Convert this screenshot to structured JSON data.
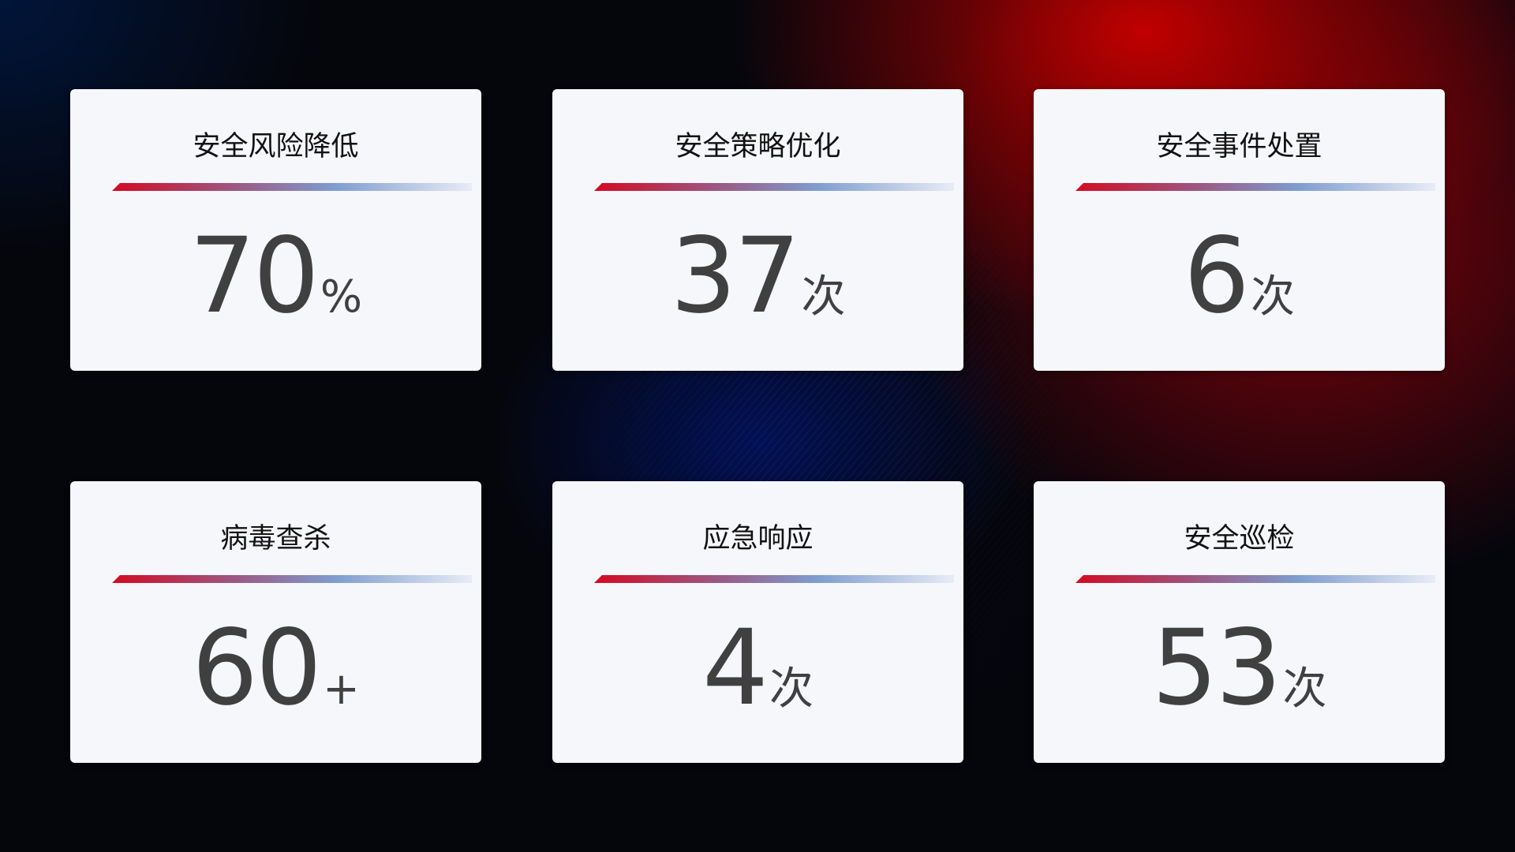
{
  "cards": [
    {
      "title": "安全风险降低",
      "value": "70",
      "unit": "%"
    },
    {
      "title": "安全策略优化",
      "value": "37",
      "unit": "次"
    },
    {
      "title": "安全事件处置",
      "value": "6",
      "unit": "次"
    },
    {
      "title": "病毒查杀",
      "value": "60",
      "unit": "+"
    },
    {
      "title": "应急响应",
      "value": "4",
      "unit": "次"
    },
    {
      "title": "安全巡检",
      "value": "53",
      "unit": "次"
    }
  ],
  "colors": {
    "accent_red": "#d40a22",
    "accent_blue": "#7f9dcf",
    "card_bg": "#f6f7fb",
    "value_text": "#404040"
  }
}
